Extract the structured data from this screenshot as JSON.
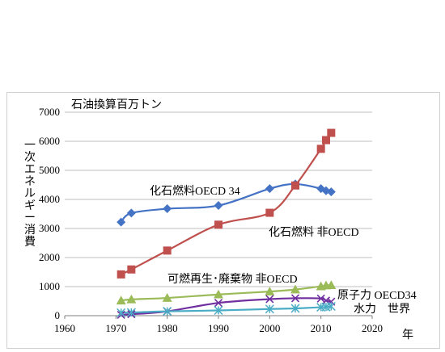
{
  "chart_data": {
    "type": "line",
    "title": "",
    "ylabel": "石油換算百万トン",
    "ylabel_vertical": [
      "一",
      "次",
      "エ",
      "ネ",
      "ル",
      "ギ",
      "ー",
      "消",
      "費"
    ],
    "xlabel": "年",
    "xlim": [
      1960,
      2020
    ],
    "ylim": [
      0,
      7000
    ],
    "x_ticks": [
      1960,
      1970,
      1980,
      1990,
      2000,
      2010,
      2020
    ],
    "y_ticks": [
      0,
      1000,
      2000,
      3000,
      4000,
      5000,
      6000,
      7000
    ],
    "grid": "horizontal",
    "series": [
      {
        "name": "化石燃料OECD 34",
        "color": "#4472c4",
        "marker": "diamond",
        "x": [
          1971,
          1973,
          1980,
          1990,
          2000,
          2005,
          2010,
          2011,
          2012
        ],
        "values": [
          3220,
          3530,
          3680,
          3790,
          4370,
          4530,
          4370,
          4300,
          4260
        ]
      },
      {
        "name": "化石燃料 非OECD",
        "color": "#c0504d",
        "marker": "square",
        "x": [
          1971,
          1973,
          1980,
          1990,
          2000,
          2005,
          2010,
          2011,
          2012
        ],
        "values": [
          1420,
          1590,
          2240,
          3130,
          3540,
          4480,
          5740,
          6040,
          6290
        ]
      },
      {
        "name": "可燃再生・廃棄物 非OECD",
        "color": "#9bbb59",
        "marker": "triangle",
        "x": [
          1971,
          1973,
          1980,
          1990,
          2000,
          2005,
          2010,
          2011,
          2012
        ],
        "values": [
          520,
          560,
          610,
          730,
          830,
          900,
          1010,
          1040,
          1050
        ]
      },
      {
        "name": "原子力 OECD34",
        "color": "#7030a0",
        "marker": "x",
        "x": [
          1971,
          1973,
          1980,
          1990,
          2000,
          2005,
          2010,
          2011,
          2012
        ],
        "values": [
          30,
          50,
          150,
          440,
          570,
          600,
          590,
          520,
          480
        ]
      },
      {
        "name": "水力 世界",
        "color": "#4bacc6",
        "marker": "star",
        "x": [
          1971,
          1973,
          1980,
          1990,
          2000,
          2005,
          2010,
          2011,
          2012
        ],
        "values": [
          100,
          110,
          150,
          180,
          230,
          250,
          290,
          300,
          320
        ]
      }
    ],
    "annotations": {
      "fossil_oecd": "化石燃料OECD 34",
      "fossil_nonoecd": "化石燃料 非OECD",
      "renew_nonoecd": "可燃再生･廃棄物 非OECD",
      "nuclear": "原子力 OECD34",
      "hydro": "水力　世界"
    }
  }
}
